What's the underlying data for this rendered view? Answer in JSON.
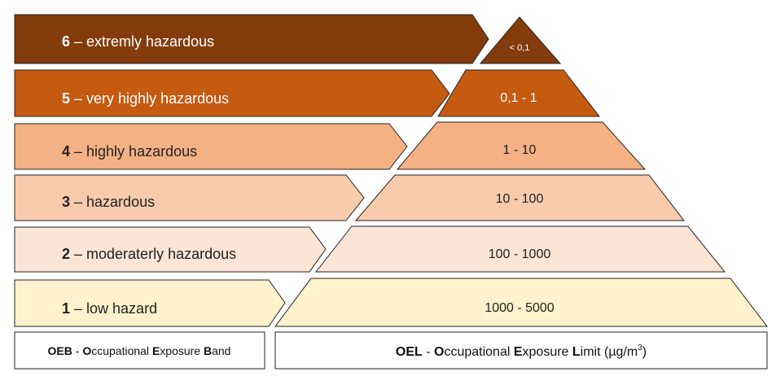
{
  "colors": {
    "band6": "#843c0c",
    "band5": "#c55a11",
    "band4": "#f4b183",
    "band3": "#f8cbad",
    "band2": "#fbe5d6",
    "band1": "#fff2cc"
  },
  "bands": [
    {
      "number": "6",
      "label": " – extremly hazardous",
      "range": "< 0,1"
    },
    {
      "number": "5",
      "label": " – very highly hazardous",
      "range": "0,1 - 1"
    },
    {
      "number": "4",
      "label": " – highly hazardous",
      "range": "1 - 10"
    },
    {
      "number": "3",
      "label": " – hazardous",
      "range": "10 - 100"
    },
    {
      "number": "2",
      "label": " – moderaterly hazardous",
      "range": "100 - 1000"
    },
    {
      "number": "1",
      "label": " – low hazard",
      "range": "1000 - 5000"
    }
  ],
  "footer": {
    "oeb": {
      "abbr": "OEB",
      "sep": " - ",
      "w1b": "O",
      "w1": "ccupational ",
      "w2b": "E",
      "w2": "xposure ",
      "w3b": "B",
      "w3": "and"
    },
    "oel": {
      "abbr": "OEL",
      "sep": " - ",
      "w1b": "O",
      "w1": "ccupational ",
      "w2b": "E",
      "w2": "xposure ",
      "w3b": "L",
      "w3": "imit (µg/m",
      "sup": "3",
      ")": ")",
      "close": ")"
    }
  }
}
